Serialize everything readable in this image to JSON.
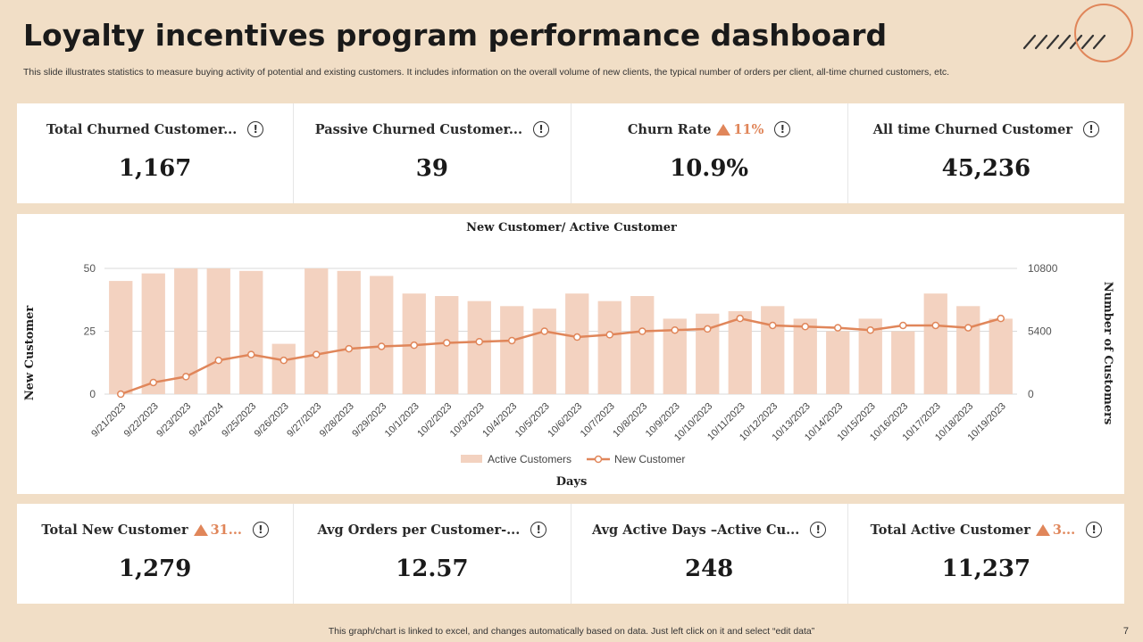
{
  "title": "Loyalty incentives program performance dashboard",
  "subtitle": "This slide illustrates statistics to measure buying activity of potential and existing customers. It includes information on the overall volume of new clients, the typical number of orders per client, all-time churned customers, etc.",
  "top_cards": [
    {
      "label": "Total Churned Customer...",
      "value": "1,167"
    },
    {
      "label": "Passive Churned Customer...",
      "value": "39"
    },
    {
      "label": "Churn Rate",
      "trend": "11%",
      "value": "10.9%"
    },
    {
      "label": "All time Churned Customer",
      "value": "45,236"
    }
  ],
  "bottom_cards": [
    {
      "label": "Total New Customer",
      "trend": "31...",
      "value": "1,279"
    },
    {
      "label": "Avg Orders per Customer-...",
      "value": "12.57"
    },
    {
      "label": "Avg Active Days –Active Cu...",
      "value": "248"
    },
    {
      "label": "Total Active Customer",
      "trend": "3...",
      "value": "11,237"
    }
  ],
  "info_glyph": "!",
  "colors": {
    "accent": "#e0865a",
    "bar": "#f3d2c0",
    "background": "#f1dec6"
  },
  "chart_data": {
    "type": "bar",
    "title": "New Customer/ Active Customer",
    "xlabel": "Days",
    "ylabel": "New Customer",
    "y2label": "Number of Customers",
    "ylim": [
      0,
      50
    ],
    "yticks": [
      "0",
      "25",
      "50"
    ],
    "y2lim": [
      0,
      10800
    ],
    "y2ticks": [
      "0",
      "5400",
      "10800"
    ],
    "categories": [
      "9/21/2023",
      "9/22/2023",
      "9/23/2023",
      "9/24/2024",
      "9/25/2023",
      "9/26/2023",
      "9/27/2023",
      "9/28/2023",
      "9/29/2023",
      "10/1/2023",
      "10/2/2023",
      "10/3/2023",
      "10/4/2023",
      "10/5/2023",
      "10/6/2023",
      "10/7/2023",
      "10/8/2023",
      "10/9/2023",
      "10/10/2023",
      "10/11/2023",
      "10/12/2023",
      "10/13/2023",
      "10/14/2023",
      "10/15/2023",
      "10/16/2023",
      "10/17/2023",
      "10/18/2023",
      "10/19/2023"
    ],
    "series": [
      {
        "name": "Active Customers",
        "type": "bar",
        "axis": "left",
        "values": [
          45,
          48,
          50,
          50,
          49,
          20,
          50,
          49,
          47,
          40,
          39,
          37,
          35,
          34,
          40,
          37,
          39,
          30,
          32,
          33,
          35,
          30,
          25,
          30,
          25,
          40,
          35,
          30
        ]
      },
      {
        "name": "New Customer",
        "type": "line",
        "axis": "right",
        "values": [
          0,
          1000,
          1500,
          2900,
          3400,
          2900,
          3400,
          3900,
          4100,
          4200,
          4400,
          4500,
          4600,
          5400,
          4900,
          5100,
          5400,
          5500,
          5600,
          6500,
          5900,
          5800,
          5700,
          5500,
          5900,
          5900,
          5700,
          6500
        ]
      }
    ],
    "legend": "bottom-center"
  },
  "footer": "This graph/chart is linked to excel,  and changes automatically based on data. Just left click on it and select “edit data”",
  "page_number": "7"
}
